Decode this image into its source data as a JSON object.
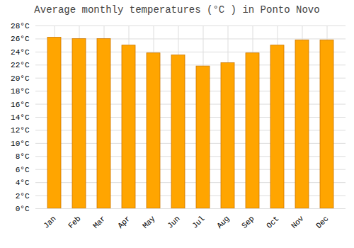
{
  "chart_data": {
    "type": "bar",
    "title": "Average monthly temperatures (°C ) in Ponto Novo",
    "categories": [
      "Jan",
      "Feb",
      "Mar",
      "Apr",
      "May",
      "Jun",
      "Jul",
      "Aug",
      "Sep",
      "Oct",
      "Nov",
      "Dec"
    ],
    "values": [
      26.2,
      26.0,
      26.0,
      25.0,
      23.8,
      23.5,
      21.8,
      22.3,
      23.8,
      25.0,
      25.8,
      25.8
    ],
    "color": "#FFA500",
    "ylim": [
      0,
      28
    ],
    "yticks": [
      {
        "value": 0,
        "label": "0°C"
      },
      {
        "value": 2,
        "label": "2°C"
      },
      {
        "value": 4,
        "label": "4°C"
      },
      {
        "value": 6,
        "label": "6°C"
      },
      {
        "value": 8,
        "label": "8°C"
      },
      {
        "value": 10,
        "label": "10°C"
      },
      {
        "value": 12,
        "label": "12°C"
      },
      {
        "value": 14,
        "label": "14°C"
      },
      {
        "value": 16,
        "label": "16°C"
      },
      {
        "value": 18,
        "label": "18°C"
      },
      {
        "value": 20,
        "label": "20°C"
      },
      {
        "value": 22,
        "label": "22°C"
      },
      {
        "value": 24,
        "label": "24°C"
      },
      {
        "value": 26,
        "label": "26°C"
      },
      {
        "value": 28,
        "label": "28°C"
      }
    ],
    "grid": true
  }
}
